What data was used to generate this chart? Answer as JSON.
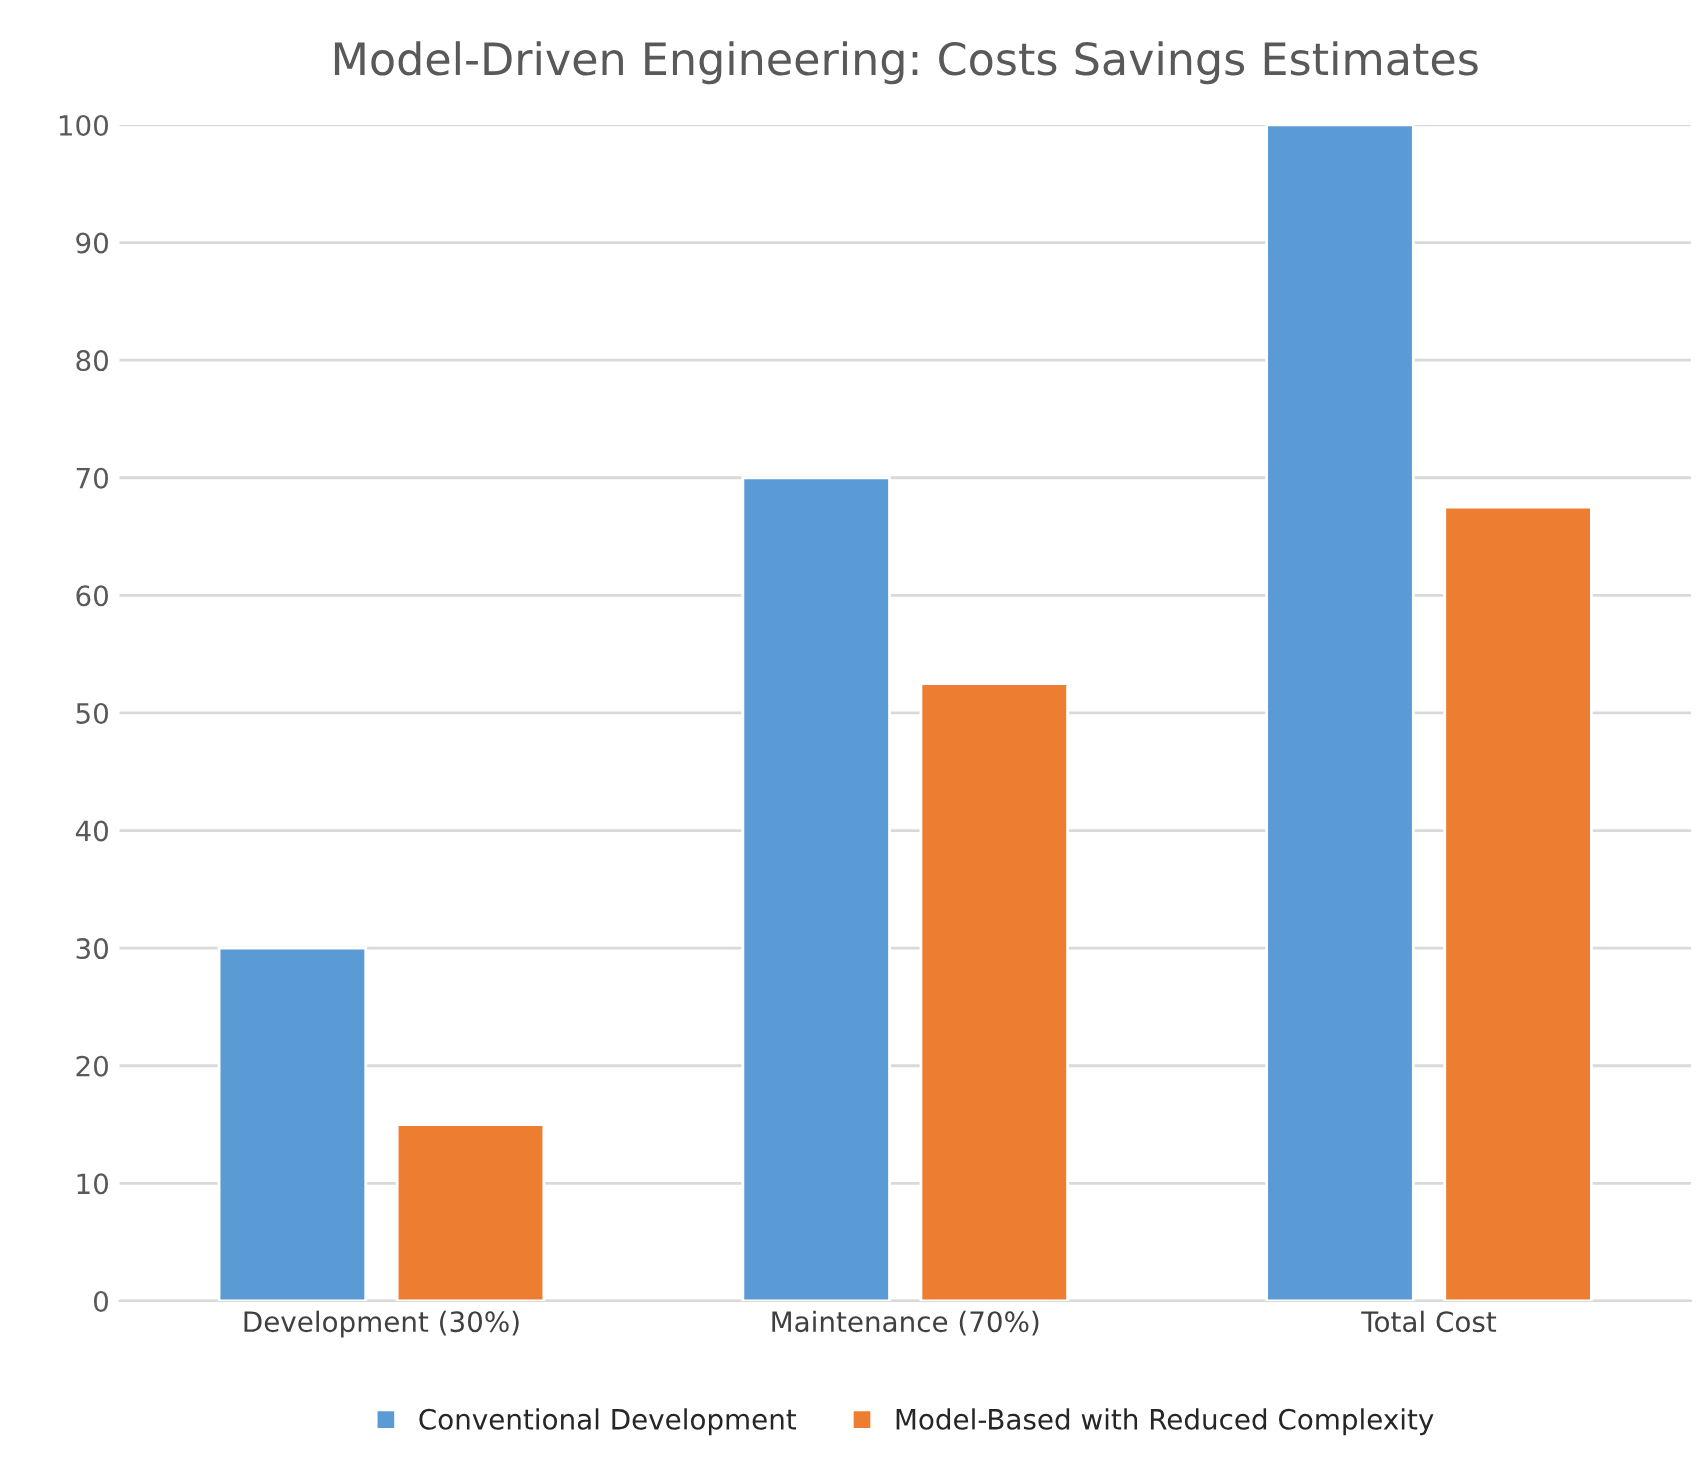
{
  "chart_data": {
    "type": "bar",
    "title": "Model-Driven Engineering: Costs Savings Estimates",
    "categories": [
      "Development (30%)",
      "Maintenance (70%)",
      "Total Cost"
    ],
    "series": [
      {
        "name": "Conventional Development",
        "color": "#5b9bd5",
        "values": [
          30,
          70,
          100
        ]
      },
      {
        "name": "Model-Based with Reduced Complexity",
        "color": "#ed7d31",
        "values": [
          15,
          52.5,
          67.5
        ]
      }
    ],
    "ylim": [
      0,
      100
    ],
    "yticks": [
      0,
      10,
      20,
      30,
      40,
      50,
      60,
      70,
      80,
      90,
      100
    ],
    "grid": "y",
    "legend": "bottom"
  }
}
